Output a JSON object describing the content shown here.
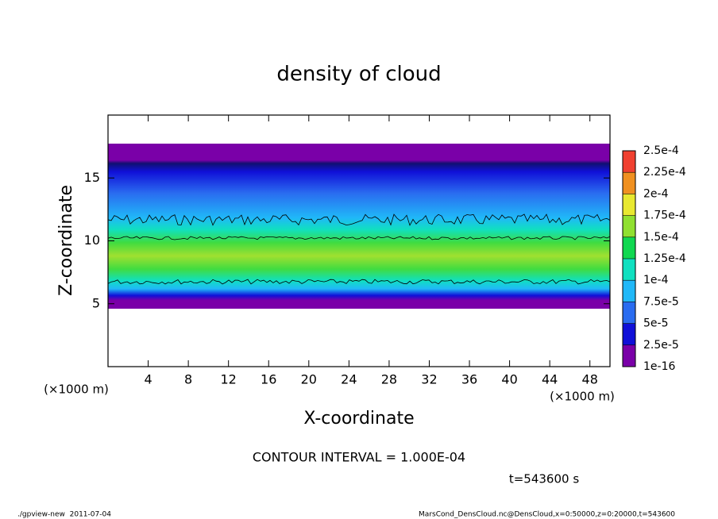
{
  "chart_data": {
    "type": "heatmap",
    "title": "density of cloud",
    "x_label": "X-coordinate",
    "y_label": "Z-coordinate",
    "x_unit": "(×1000 m)",
    "y_unit": "(×1000 m)",
    "xlim": [
      0,
      50
    ],
    "xticks": [
      4,
      8,
      12,
      16,
      20,
      24,
      28,
      32,
      36,
      40,
      44,
      48
    ],
    "ylim": [
      0,
      20
    ],
    "yticks": [
      5,
      10,
      15
    ],
    "colorbar": {
      "lim": [
        1e-16,
        0.00025
      ],
      "ticks": [
        {
          "value": 1e-16,
          "label": "1e-16"
        },
        {
          "value": 2.5e-05,
          "label": "2.5e-5"
        },
        {
          "value": 5e-05,
          "label": "5e-5"
        },
        {
          "value": 7.5e-05,
          "label": "7.5e-5"
        },
        {
          "value": 0.0001,
          "label": "1e-4"
        },
        {
          "value": 0.000125,
          "label": "1.25e-4"
        },
        {
          "value": 0.00015,
          "label": "1.5e-4"
        },
        {
          "value": 0.000175,
          "label": "1.75e-4"
        },
        {
          "value": 0.0002,
          "label": "2e-4"
        },
        {
          "value": 0.000225,
          "label": "2.25e-4"
        },
        {
          "value": 0.00025,
          "label": "2.5e-4"
        }
      ],
      "colors": [
        "#7a00a8",
        "#1010d8",
        "#2a6cf0",
        "#20b8f8",
        "#10e0c0",
        "#10d850",
        "#90e030",
        "#e8e830",
        "#f09020",
        "#f04030",
        "#f4a0a0"
      ]
    },
    "annotations": [
      "CONTOUR INTERVAL = 1.000E-04",
      "t=543600 s"
    ],
    "footer_left": "./gpview-new  2011-07-04",
    "footer_right": "MarsCond_DensCloud.nc@DensCloud,x=0:50000,z=0:20000,t=543600"
  }
}
